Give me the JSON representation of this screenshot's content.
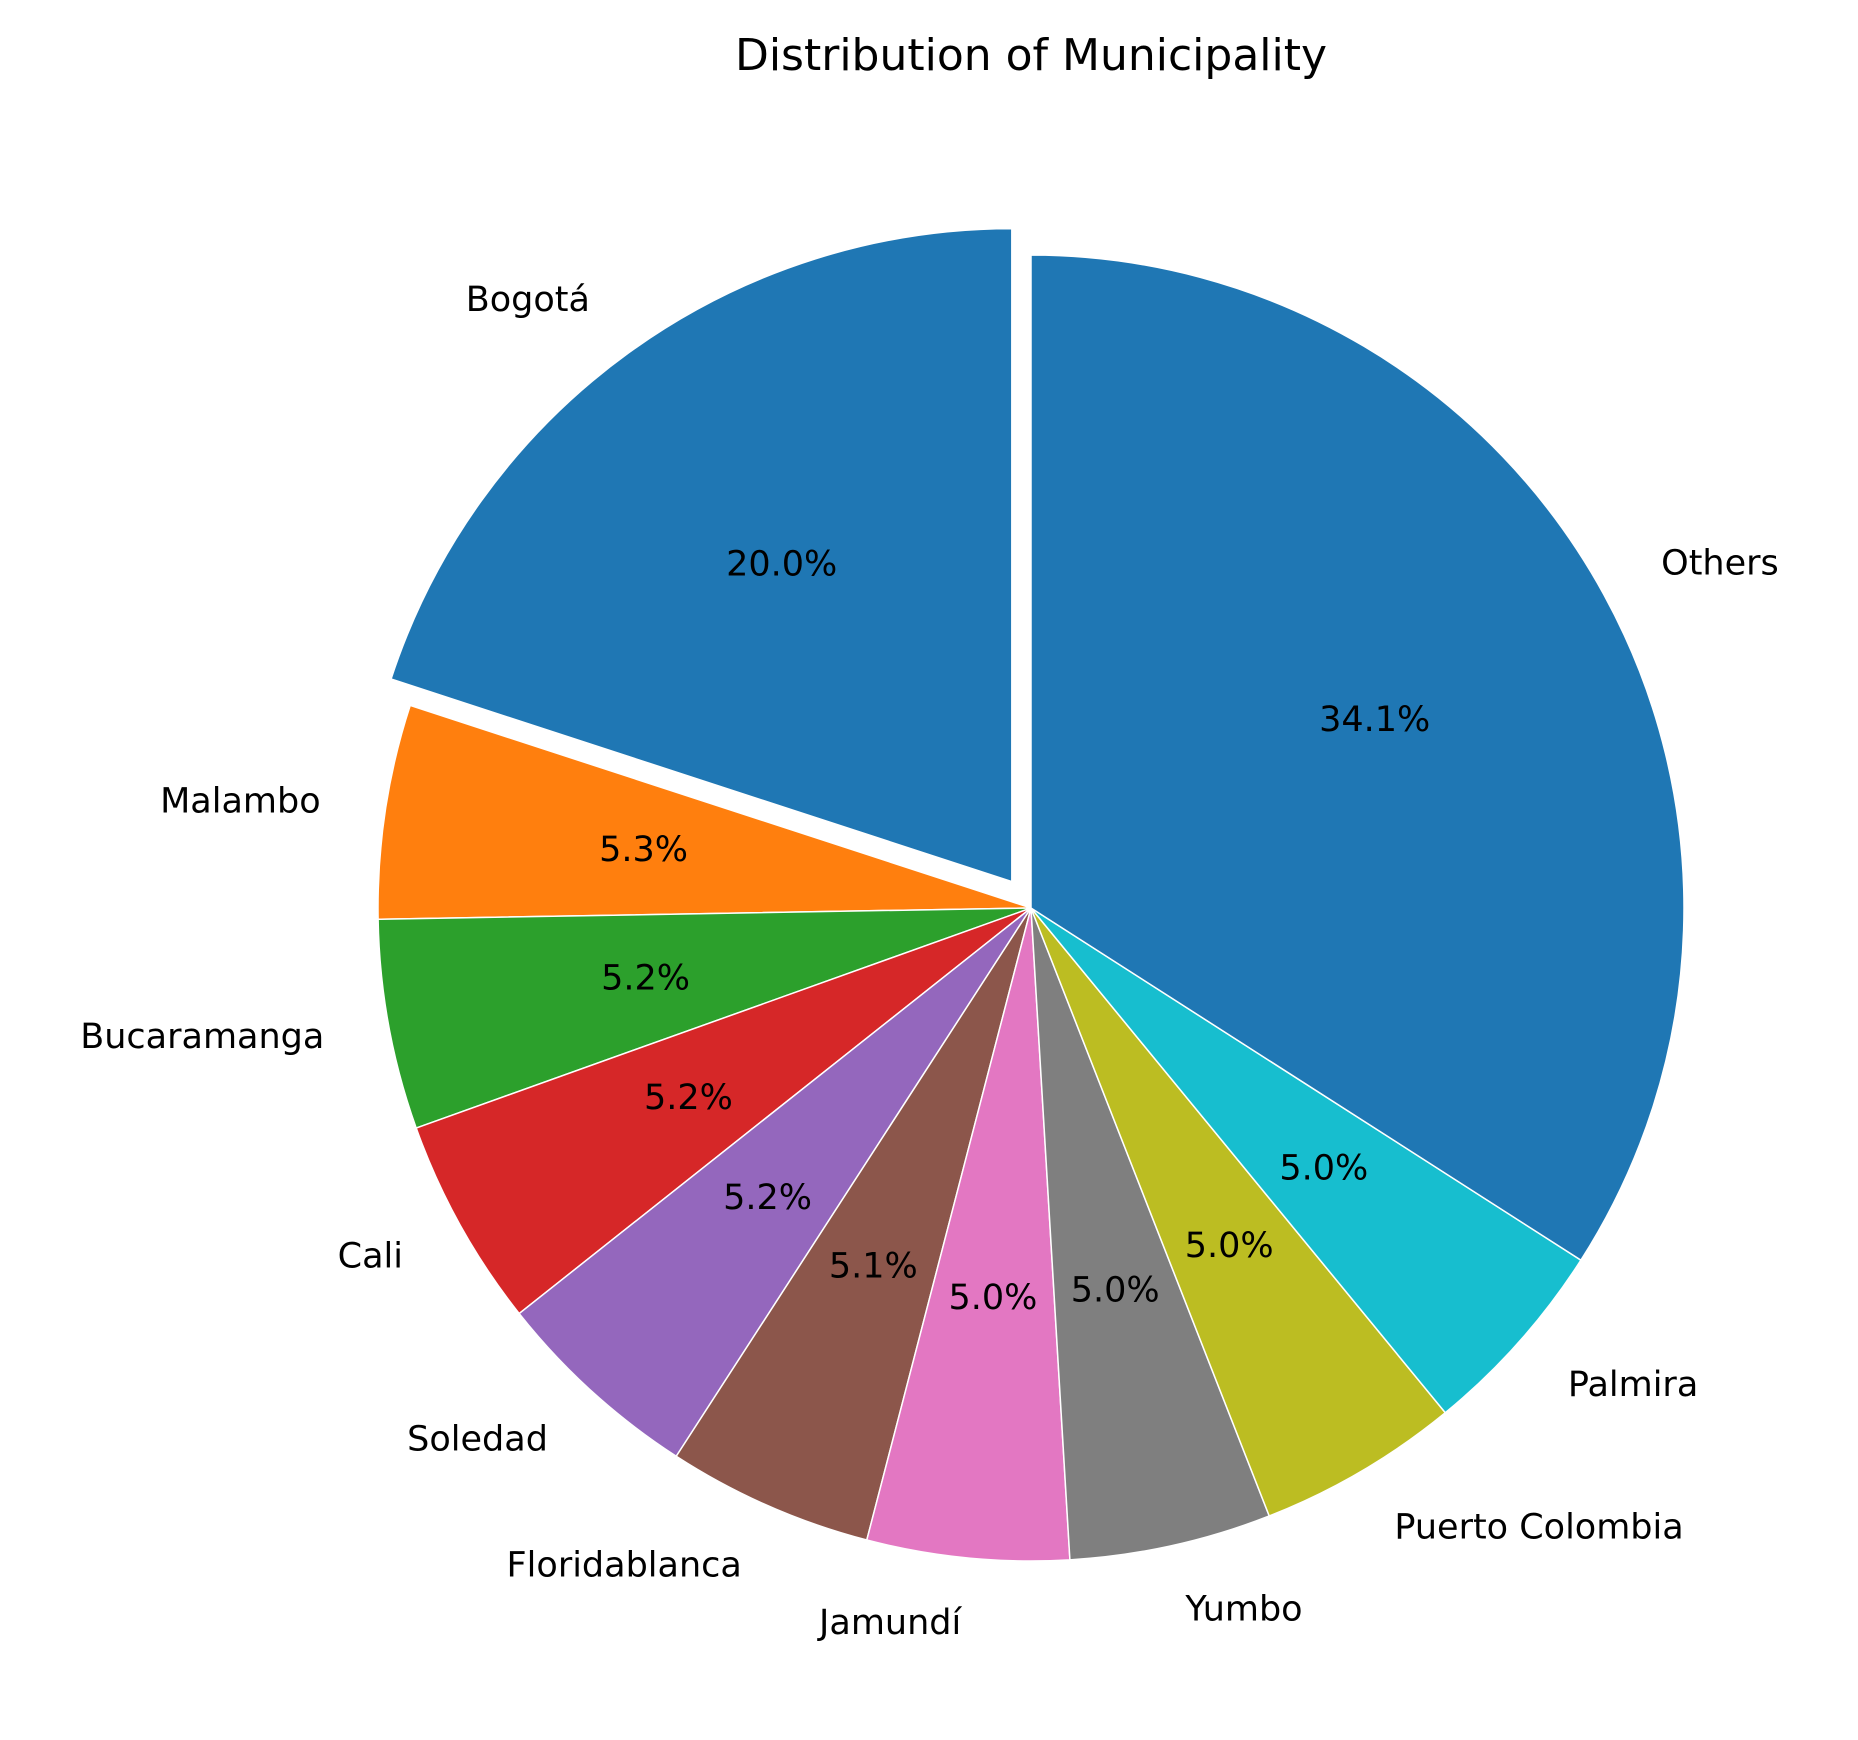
{
  "chart_data": {
    "type": "pie",
    "title": "Distribution of Municipality",
    "start_angle_deg": 90,
    "direction": "counterclockwise",
    "slices": [
      {
        "label": "Bogotá",
        "value": 20.0,
        "pct_label": "20.0%",
        "color": "#1f77b4",
        "exploded": true
      },
      {
        "label": "Malambo",
        "value": 5.3,
        "pct_label": "5.3%",
        "color": "#ff7f0e",
        "exploded": false
      },
      {
        "label": "Bucaramanga",
        "value": 5.2,
        "pct_label": "5.2%",
        "color": "#2ca02c",
        "exploded": false
      },
      {
        "label": "Cali",
        "value": 5.2,
        "pct_label": "5.2%",
        "color": "#d62728",
        "exploded": false
      },
      {
        "label": "Soledad",
        "value": 5.2,
        "pct_label": "5.2%",
        "color": "#9467bd",
        "exploded": false
      },
      {
        "label": "Floridablanca",
        "value": 5.1,
        "pct_label": "5.1%",
        "color": "#8c564b",
        "exploded": false
      },
      {
        "label": "Jamundí",
        "value": 5.0,
        "pct_label": "5.0%",
        "color": "#e377c2",
        "exploded": false
      },
      {
        "label": "Yumbo",
        "value": 5.0,
        "pct_label": "5.0%",
        "color": "#7f7f7f",
        "exploded": false
      },
      {
        "label": "Puerto Colombia",
        "value": 5.0,
        "pct_label": "5.0%",
        "color": "#bcbd22",
        "exploded": false
      },
      {
        "label": "Palmira",
        "value": 5.0,
        "pct_label": "5.0%",
        "color": "#17becf",
        "exploded": false
      },
      {
        "label": "Others",
        "value": 34.1,
        "pct_label": "34.1%",
        "color": "#1f77b4",
        "exploded": false
      }
    ]
  }
}
